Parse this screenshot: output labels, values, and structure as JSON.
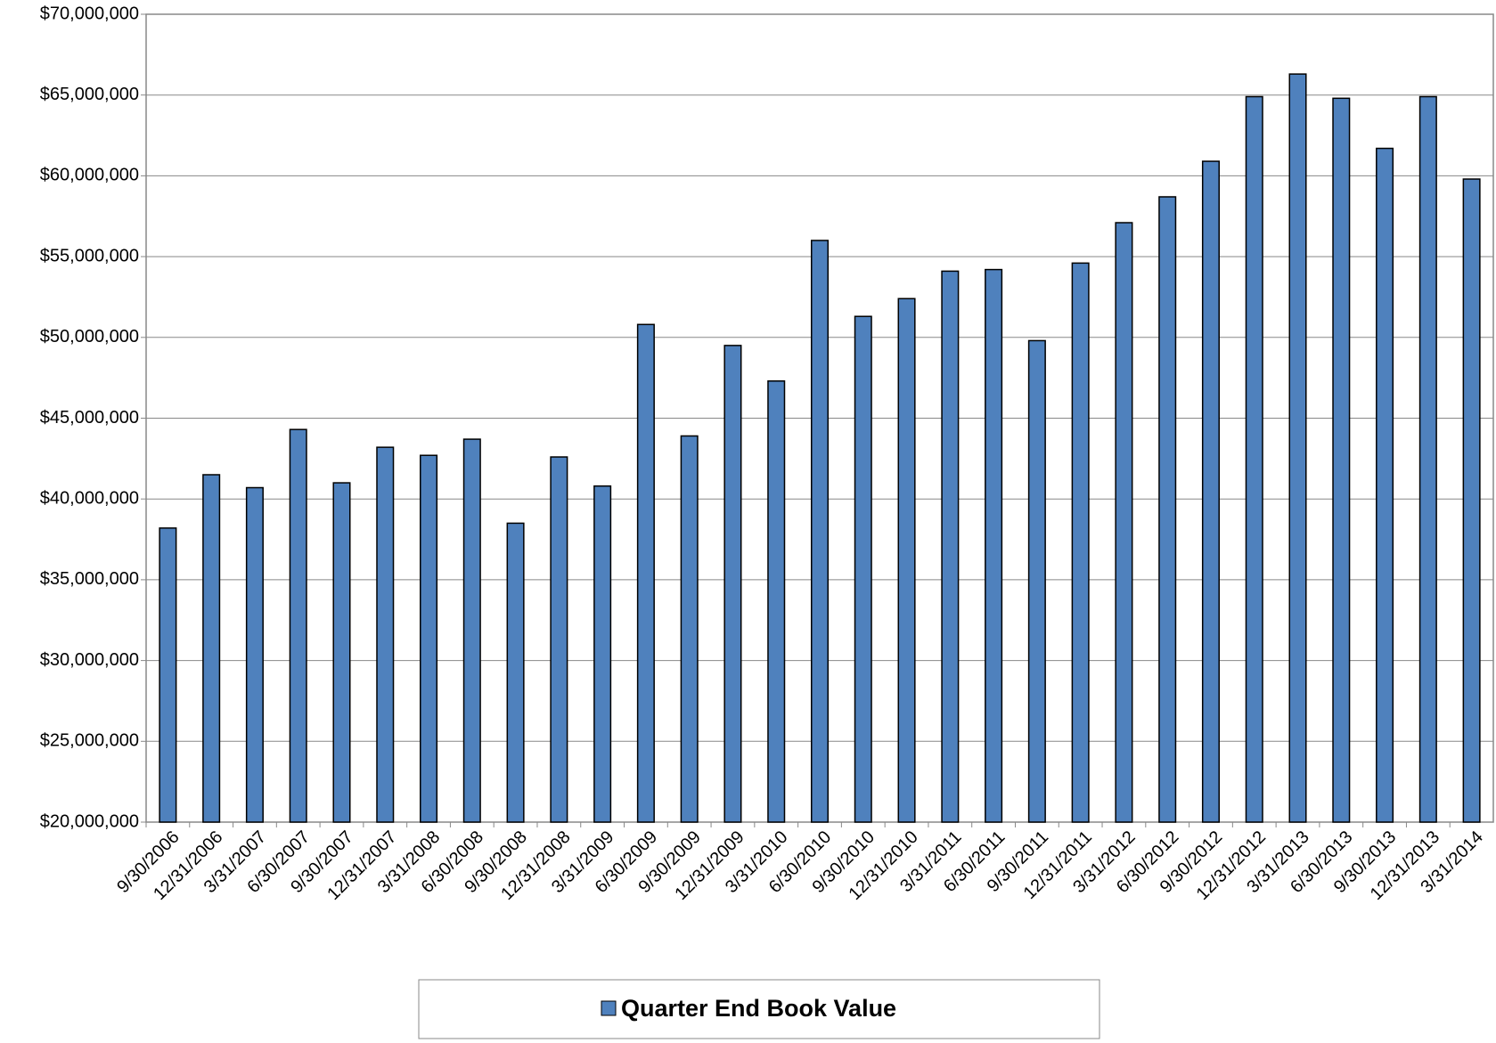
{
  "chart_data": {
    "type": "bar",
    "categories": [
      "9/30/2006",
      "12/31/2006",
      "3/31/2007",
      "6/30/2007",
      "9/30/2007",
      "12/31/2007",
      "3/31/2008",
      "6/30/2008",
      "9/30/2008",
      "12/31/2008",
      "3/31/2009",
      "6/30/2009",
      "9/30/2009",
      "12/31/2009",
      "3/31/2010",
      "6/30/2010",
      "9/30/2010",
      "12/31/2010",
      "3/31/2011",
      "6/30/2011",
      "9/30/2011",
      "12/31/2011",
      "3/31/2012",
      "6/30/2012",
      "9/30/2012",
      "12/31/2012",
      "3/31/2013",
      "6/30/2013",
      "9/30/2013",
      "12/31/2013",
      "3/31/2014"
    ],
    "series": [
      {
        "name": "Quarter End Book Value",
        "color": "#4f81bd",
        "values": [
          38200000,
          41500000,
          40700000,
          44300000,
          41000000,
          43200000,
          42700000,
          43700000,
          38500000,
          42600000,
          40800000,
          50800000,
          43900000,
          49500000,
          47300000,
          56000000,
          51300000,
          52400000,
          54100000,
          54200000,
          49800000,
          54600000,
          57100000,
          58700000,
          60900000,
          64900000,
          66300000,
          64800000,
          61700000,
          64900000,
          59800000
        ]
      }
    ],
    "ylim": [
      20000000,
      70000000
    ],
    "yticks": [
      {
        "value": 20000000,
        "label": "$20,000,000"
      },
      {
        "value": 25000000,
        "label": "$25,000,000"
      },
      {
        "value": 30000000,
        "label": "$30,000,000"
      },
      {
        "value": 35000000,
        "label": "$35,000,000"
      },
      {
        "value": 40000000,
        "label": "$40,000,000"
      },
      {
        "value": 45000000,
        "label": "$45,000,000"
      },
      {
        "value": 50000000,
        "label": "$50,000,000"
      },
      {
        "value": 55000000,
        "label": "$55,000,000"
      },
      {
        "value": 60000000,
        "label": "$60,000,000"
      },
      {
        "value": 65000000,
        "label": "$65,000,000"
      },
      {
        "value": 70000000,
        "label": "$70,000,000"
      }
    ],
    "grid": true,
    "legend": "bottom"
  }
}
